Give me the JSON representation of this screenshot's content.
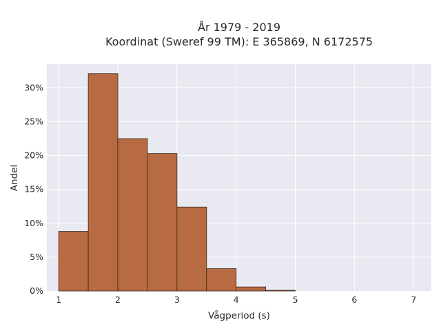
{
  "chart_data": {
    "type": "bar",
    "title_lines": [
      "År 1979 - 2019",
      "Koordinat (Sweref 99 TM): E 365869, N 6172575"
    ],
    "xlabel": "Vågperiod (s)",
    "ylabel": "Andel",
    "xlim": [
      0.8,
      7.3
    ],
    "ylim": [
      0,
      0.335
    ],
    "x_ticks": [
      1,
      2,
      3,
      4,
      5,
      6,
      7
    ],
    "y_ticks": [
      0,
      0.05,
      0.1,
      0.15,
      0.2,
      0.25,
      0.3
    ],
    "y_tick_labels": [
      "0%",
      "5%",
      "10%",
      "15%",
      "20%",
      "25%",
      "30%"
    ],
    "bin_edges": [
      1.0,
      1.5,
      2.0,
      2.5,
      3.0,
      3.5,
      4.0,
      4.5,
      5.0
    ],
    "values": [
      0.088,
      0.321,
      0.225,
      0.203,
      0.124,
      0.033,
      0.006,
      0.001
    ],
    "grid": true,
    "bar_color": "#b86b42",
    "bar_edge_color": "#3a2414",
    "plot_bg": "#e9e9f2"
  }
}
